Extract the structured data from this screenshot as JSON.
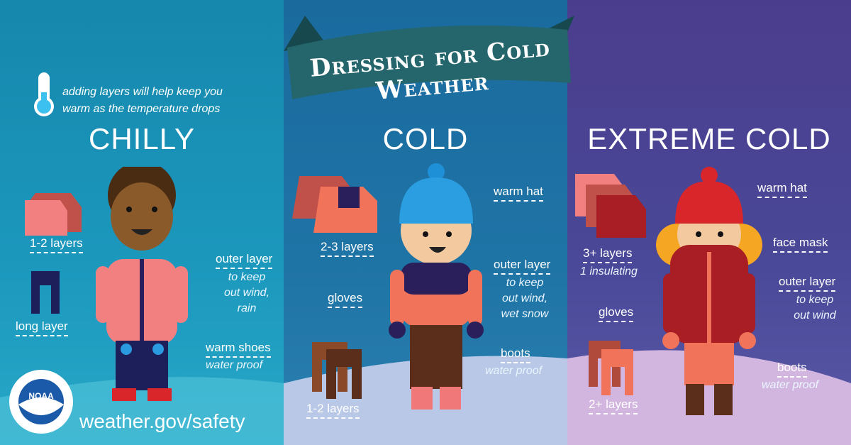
{
  "title": "Dressing for Cold Weather",
  "intro": {
    "line1": "adding layers will help keep you",
    "line2": "warm as the temperature drops",
    "icon": "thermometer-icon"
  },
  "panels": [
    {
      "heading": "CHILLY",
      "color": "#1a8ab0",
      "labels": {
        "top": "1-2 layers",
        "legs": "long layer",
        "outer": "outer layer",
        "outer_sub1": "to keep",
        "outer_sub2": "out wind,",
        "outer_sub3": "rain",
        "shoes": "warm shoes",
        "shoes_sub": "water proof"
      }
    },
    {
      "heading": "COLD",
      "color": "#1f6fa0",
      "labels": {
        "hat": "warm hat",
        "top": "2-3 layers",
        "gloves": "gloves",
        "outer": "outer layer",
        "outer_sub1": "to keep",
        "outer_sub2": "out wind,",
        "outer_sub3": "wet snow",
        "boots": "boots",
        "boots_sub": "water proof",
        "legs": "1-2 layers"
      }
    },
    {
      "heading": "EXTREME COLD",
      "color": "#4b3d8d",
      "labels": {
        "hat": "warm hat",
        "mask": "face mask",
        "top": "3+ layers",
        "top_sub": "1 insulating",
        "gloves": "gloves",
        "outer": "outer layer",
        "outer_sub1": "to keep",
        "outer_sub2": "out wind",
        "boots": "boots",
        "boots_sub": "water proof",
        "legs": "2+ layers"
      }
    }
  ],
  "footer": {
    "url": "weather.gov/safety",
    "logo_text": "NOAA"
  }
}
